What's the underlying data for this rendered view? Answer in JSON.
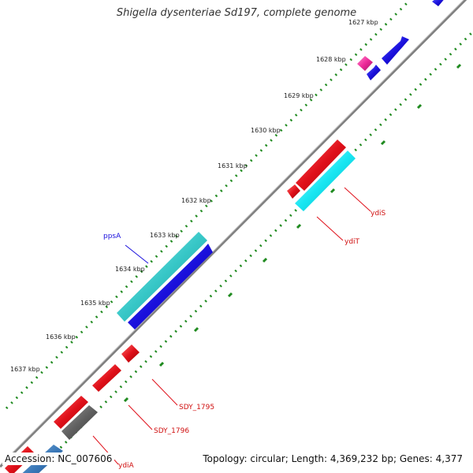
{
  "title": "Shigella dysenteriae Sd197, complete genome",
  "footer": {
    "accession": "Accession: NC_007606",
    "summary": "Topology: circular; Length: 4,369,232 bp; Genes: 4,377"
  },
  "tick_labels": [
    "1627 kbp",
    "1628 kbp",
    "1629 kbp",
    "1630 kbp",
    "1631 kbp",
    "1632 kbp",
    "1633 kbp",
    "1634 kbp",
    "1635 kbp",
    "1636 kbp",
    "1637 kbp"
  ],
  "gene_labels": {
    "ppsA": "ppsA",
    "ydiS": "ydiS",
    "ydiT": "ydiT",
    "sdy1795": "SDY_1795",
    "sdy1796": "SDY_1796",
    "ydiA": "ydiA"
  },
  "colors": {
    "forward_cds": "#1a10dd",
    "reverse_cds": "#e0101a",
    "ppsA": "#37c7c7",
    "ydiS": "#18e6f2",
    "pseudo": "#606060",
    "highlight": "#ee2a9a",
    "backbone": "#808080",
    "ticks": "#1f8a1f"
  }
}
